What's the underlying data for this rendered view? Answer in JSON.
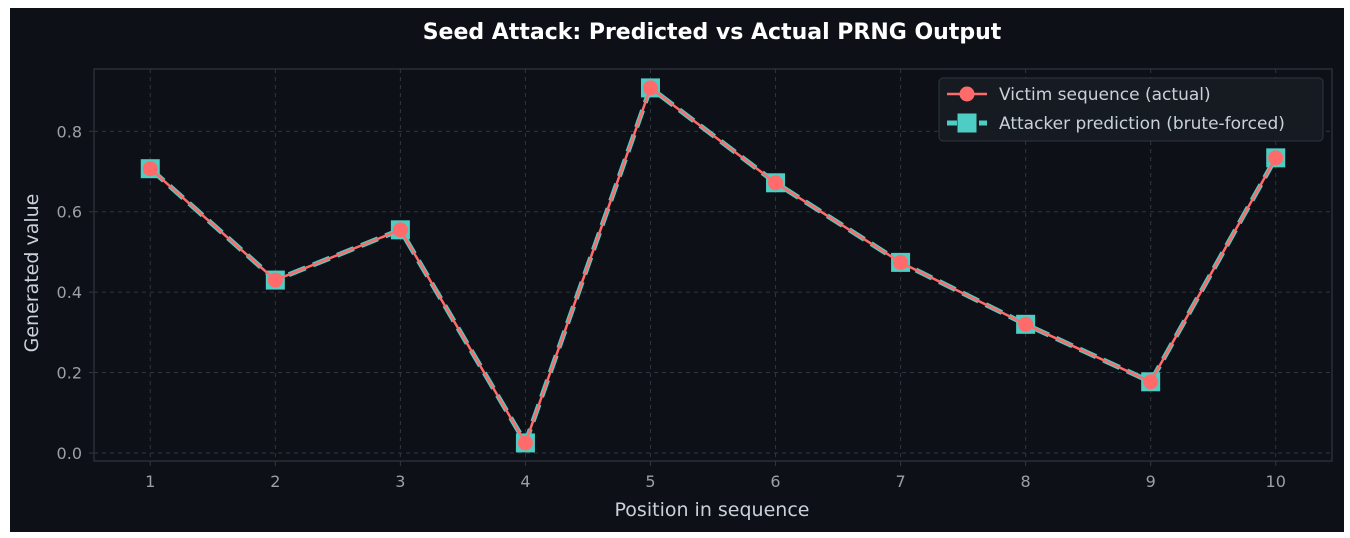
{
  "chart_data": {
    "type": "line",
    "title": "Seed Attack: Predicted vs Actual PRNG Output",
    "xlabel": "Position in sequence",
    "ylabel": "Generated value",
    "x": [
      1,
      2,
      3,
      4,
      5,
      6,
      7,
      8,
      9,
      10
    ],
    "xlim": [
      0.55,
      10.45
    ],
    "ylim": [
      -0.02,
      0.955
    ],
    "xticks": [
      1,
      2,
      3,
      4,
      5,
      6,
      7,
      8,
      9,
      10
    ],
    "yticks": [
      0.0,
      0.2,
      0.4,
      0.6,
      0.8
    ],
    "ytick_labels": [
      "0.0",
      "0.2",
      "0.4",
      "0.6",
      "0.8"
    ],
    "grid": true,
    "legend_position": "top-right",
    "series": [
      {
        "name": "Victim sequence (actual)",
        "values": [
          0.707,
          0.43,
          0.555,
          0.025,
          0.908,
          0.672,
          0.474,
          0.32,
          0.177,
          0.734
        ],
        "color": "#ff6b6b",
        "marker": "circle",
        "line_style": "solid"
      },
      {
        "name": "Attacker prediction (brute-forced)",
        "values": [
          0.707,
          0.43,
          0.555,
          0.025,
          0.908,
          0.672,
          0.474,
          0.32,
          0.177,
          0.734
        ],
        "color": "#4ecdc4",
        "marker": "square",
        "line_style": "dashed"
      }
    ],
    "colors": {
      "background": "#0d1117",
      "grid": "#30363d",
      "axis": "#30363d",
      "text": "#c9d1d9",
      "tick_text": "#9aa0a6",
      "legend_bg": "#161b22"
    }
  }
}
